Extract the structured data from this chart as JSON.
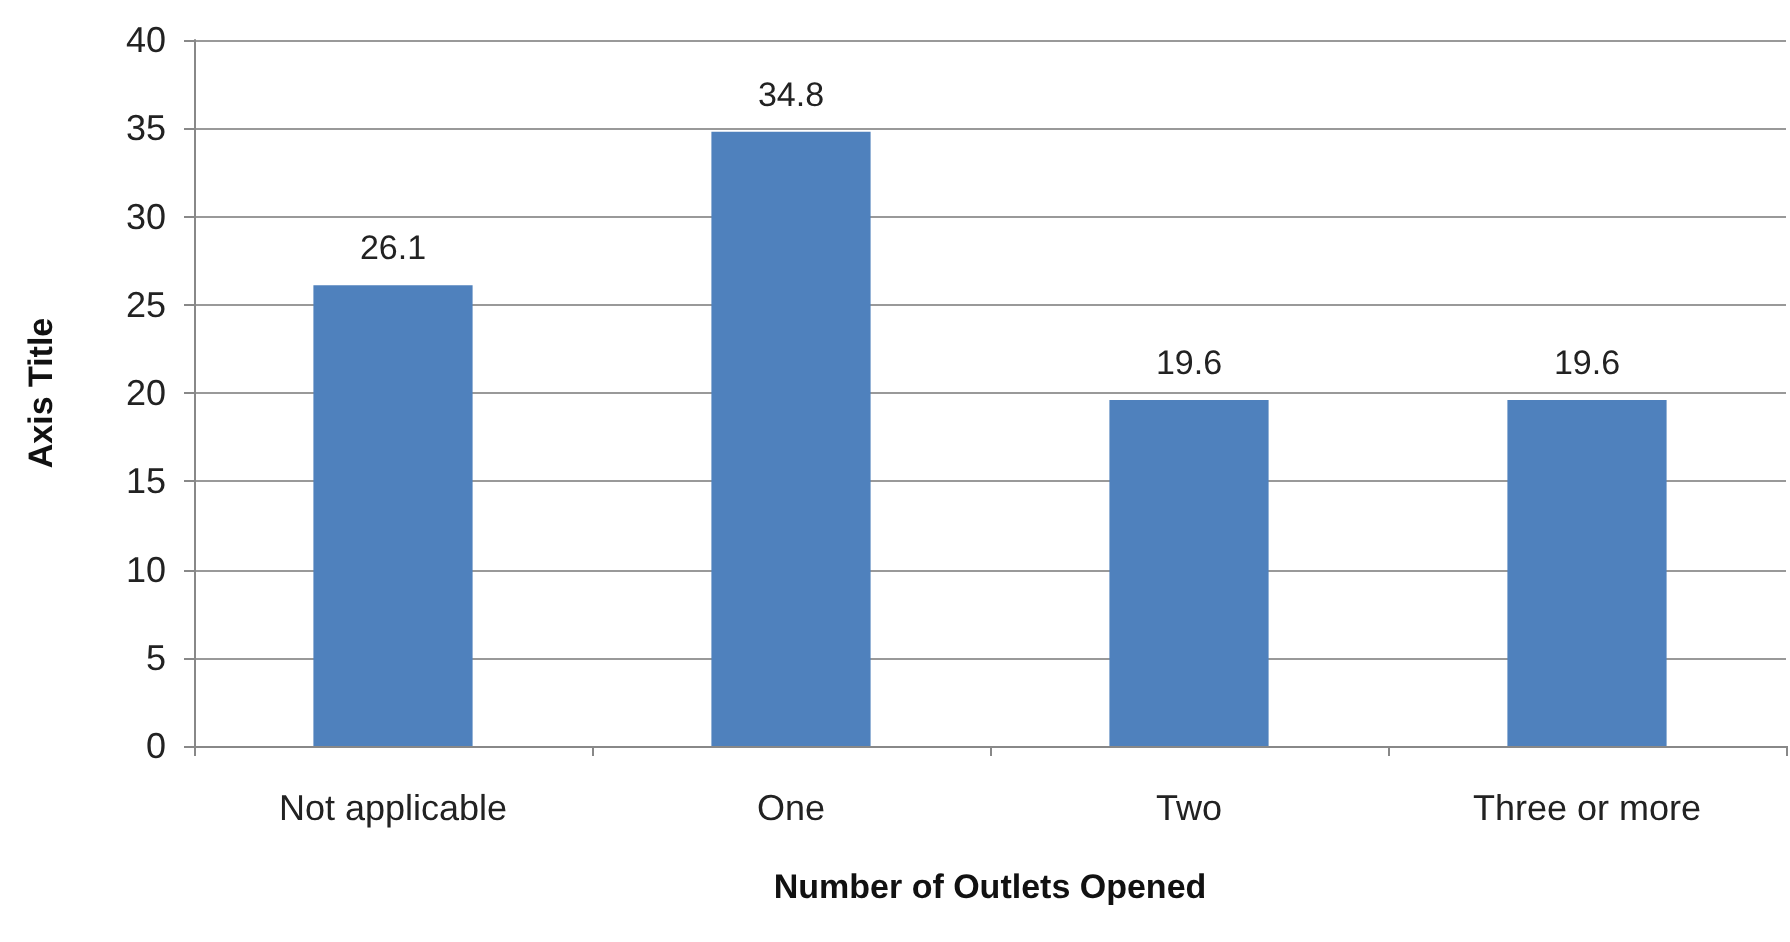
{
  "chart_data": {
    "type": "bar",
    "xlabel": "Number of Outlets Opened",
    "ylabel": "Axis Title",
    "categories": [
      "Not applicable",
      "One",
      "Two",
      "Three or more"
    ],
    "values": [
      26.1,
      34.8,
      19.6,
      19.6
    ],
    "color": "#4f81bd",
    "ylim": [
      0,
      40
    ],
    "yticks": [
      0,
      5,
      10,
      15,
      20,
      25,
      30,
      35,
      40
    ],
    "grid": "y",
    "data_labels": true
  }
}
